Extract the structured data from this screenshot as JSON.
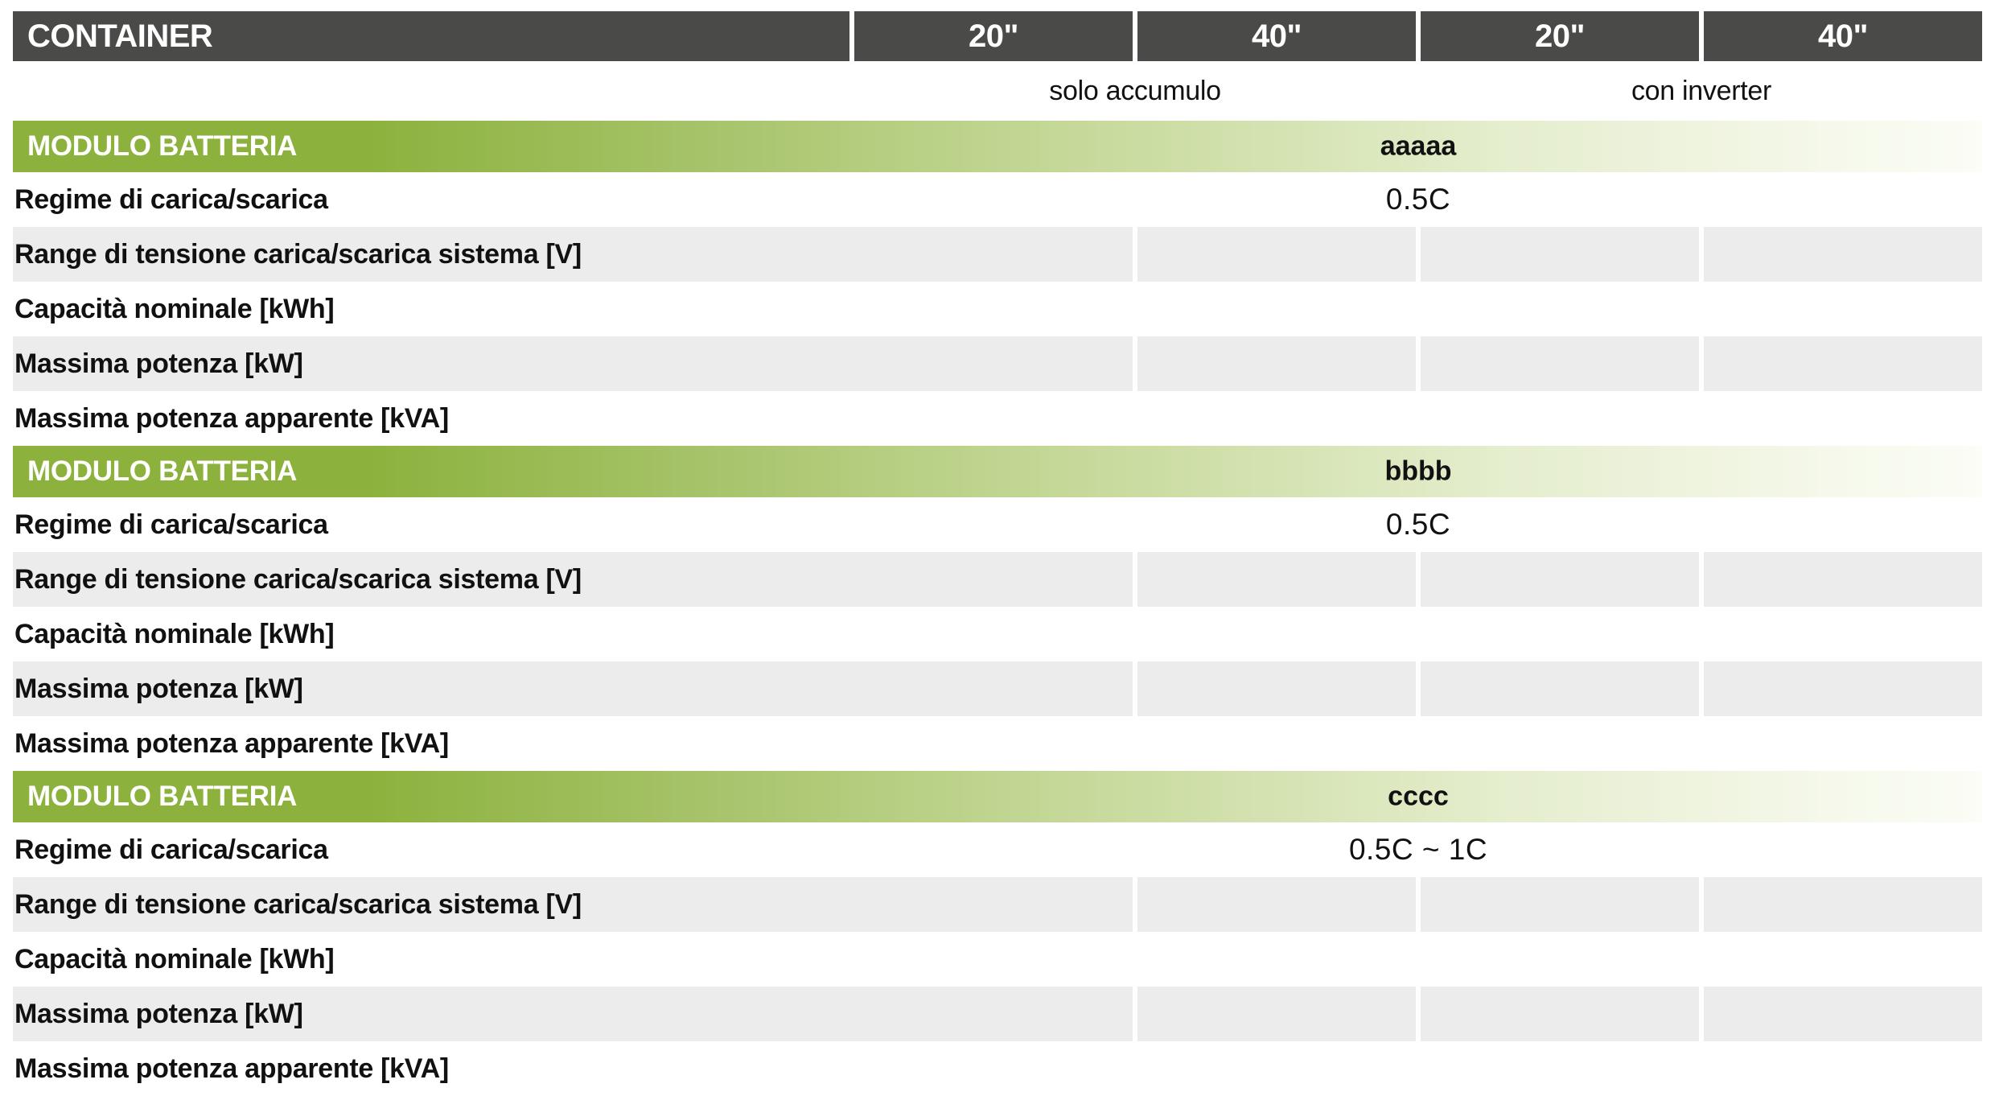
{
  "header": {
    "container_label": "CONTAINER",
    "columns": [
      "20\"",
      "40\"",
      "20\"",
      "40\""
    ]
  },
  "subheader": {
    "left": "solo accumulo",
    "right": "con inverter"
  },
  "sections": [
    {
      "title": "MODULO BATTERIA",
      "product": "aaaaa",
      "rows": [
        {
          "label": "Regime di carica/scarica",
          "value": "0.5C"
        },
        {
          "label": "Range di tensione carica/scarica sistema [V]",
          "value": ""
        },
        {
          "label": "Capacità nominale [kWh]",
          "value": ""
        },
        {
          "label": "Massima potenza [kW]",
          "value": ""
        },
        {
          "label": "Massima potenza apparente [kVA]",
          "value": ""
        }
      ]
    },
    {
      "title": "MODULO BATTERIA",
      "product": "bbbb",
      "rows": [
        {
          "label": "Regime di carica/scarica",
          "value": "0.5C"
        },
        {
          "label": "Range di tensione carica/scarica sistema [V]",
          "value": ""
        },
        {
          "label": "Capacità nominale [kWh]",
          "value": ""
        },
        {
          "label": "Massima potenza [kW]",
          "value": ""
        },
        {
          "label": "Massima potenza apparente [kVA]",
          "value": ""
        }
      ]
    },
    {
      "title": "MODULO BATTERIA",
      "product": "cccc",
      "rows": [
        {
          "label": "Regime di carica/scarica",
          "value": "0.5C ~ 1C"
        },
        {
          "label": "Range di tensione carica/scarica sistema [V]",
          "value": ""
        },
        {
          "label": "Capacità nominale [kWh]",
          "value": ""
        },
        {
          "label": "Massima potenza [kW]",
          "value": ""
        },
        {
          "label": "Massima potenza apparente [kVA]",
          "value": ""
        }
      ]
    }
  ],
  "colors": {
    "header_dark": "#4a4a48",
    "accent_green": "#8cb23d",
    "row_gray": "#ececec"
  }
}
